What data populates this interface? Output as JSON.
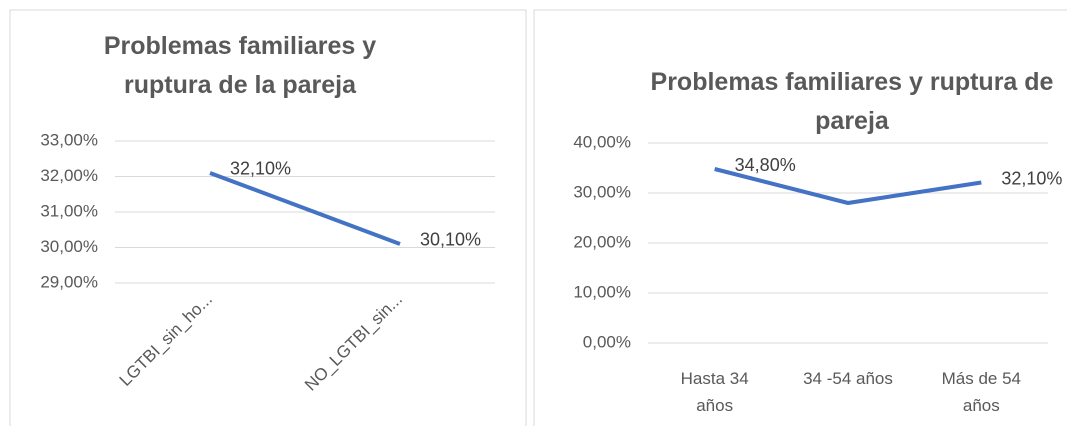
{
  "chart_data": [
    {
      "type": "line",
      "title": "Problemas familiares y ruptura de la pareja",
      "categories": [
        "LGTBI_sin_ho...",
        "NO_LGTBI_sin..."
      ],
      "series": [
        {
          "color": "#4472c4",
          "values": [
            32.1,
            30.1
          ],
          "value_labels": [
            "32,10%",
            "30,10%"
          ]
        }
      ],
      "ylim": [
        29,
        33
      ],
      "yticks": [
        {
          "value": 29,
          "label": "29,00%"
        },
        {
          "value": 30,
          "label": "30,00%"
        },
        {
          "value": 31,
          "label": "31,00%"
        },
        {
          "value": 32,
          "label": "32,00%"
        },
        {
          "value": 33,
          "label": "33,00%"
        }
      ],
      "grid": true
    },
    {
      "type": "line",
      "title": "Problemas familiares y ruptura de pareja",
      "categories": [
        "Hasta 34 años",
        "34 -54 años",
        "Más de 54 años"
      ],
      "series": [
        {
          "color": "#4472c4",
          "values": [
            34.8,
            28.0,
            32.1
          ],
          "value_labels": [
            "34,80%",
            null,
            "32,10%"
          ]
        }
      ],
      "ylim": [
        0,
        40
      ],
      "yticks": [
        {
          "value": 0,
          "label": "0,00%"
        },
        {
          "value": 10,
          "label": "10,00%"
        },
        {
          "value": 20,
          "label": "20,00%"
        },
        {
          "value": 30,
          "label": "30,00%"
        },
        {
          "value": 40,
          "label": "40,00%"
        }
      ],
      "grid": true
    }
  ]
}
